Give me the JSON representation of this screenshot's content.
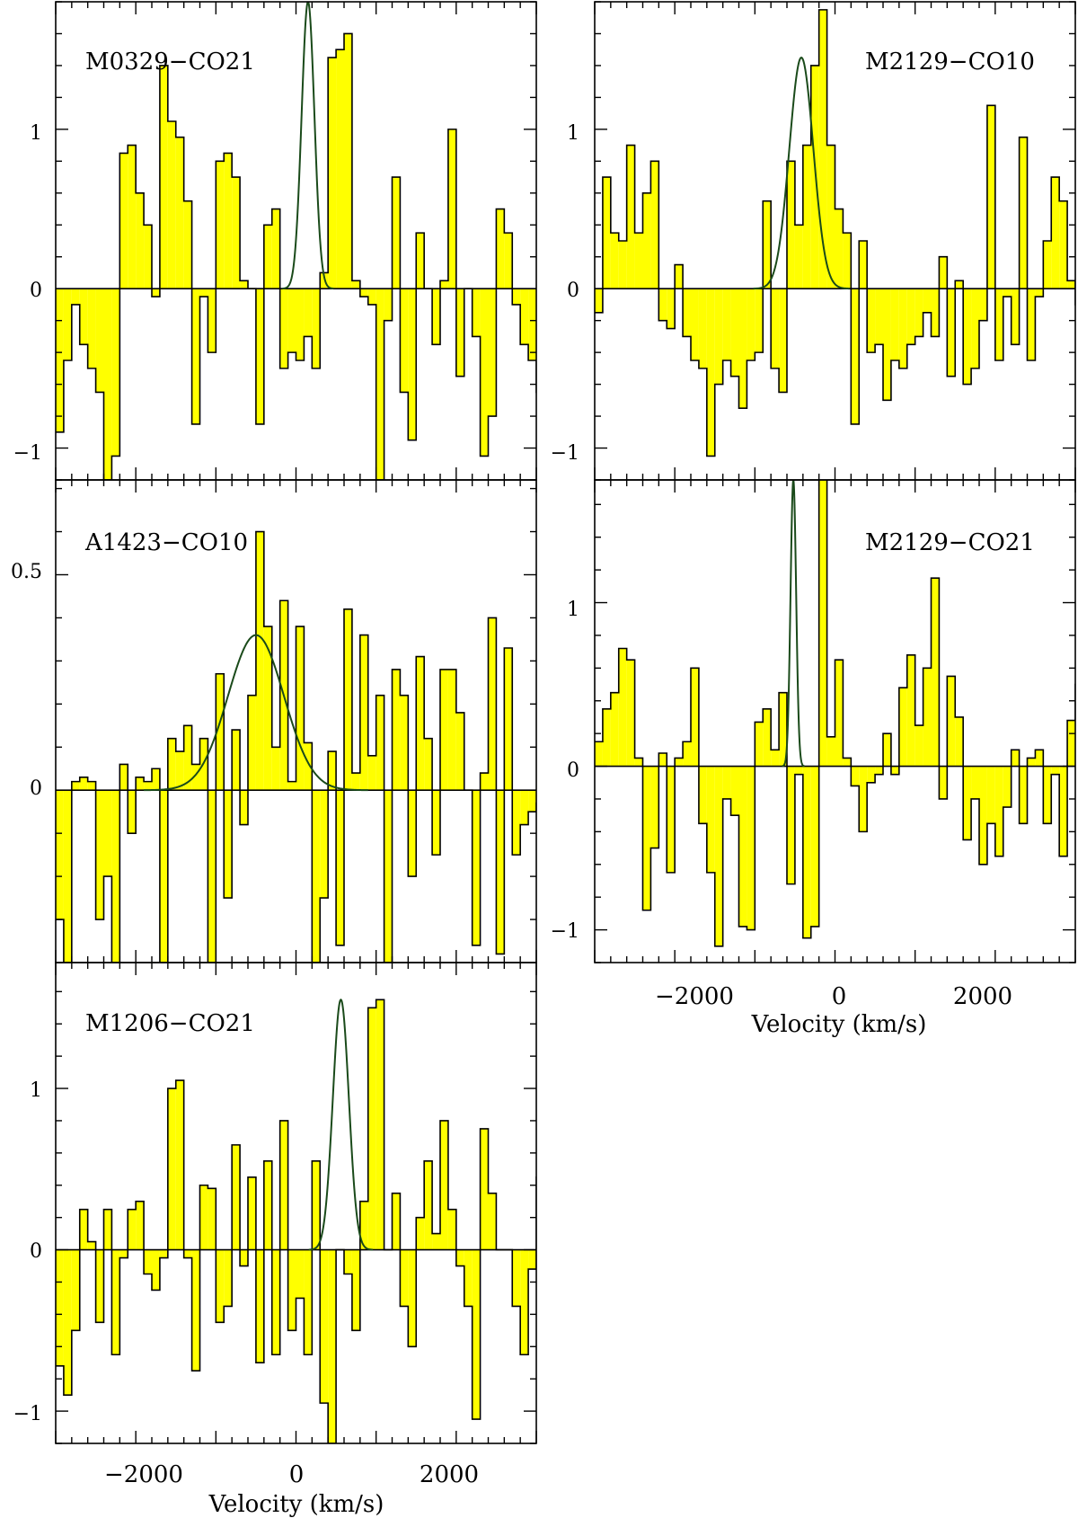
{
  "colors": {
    "fill": "#ffff00",
    "outline": "#000000",
    "fit": "#1a4a1a"
  },
  "x_axis": {
    "label": "Velocity (km/s)",
    "tick_labels": [
      "−2000",
      "0",
      "2000"
    ]
  },
  "chart_data": [
    {
      "type": "step-histogram",
      "panel_label": "M0329−CO21",
      "xlim": [
        -3000,
        3000
      ],
      "ylim": [
        -1.2,
        1.8
      ],
      "y_tick_labels": [
        "−1",
        "0",
        "1"
      ],
      "show_x_tick_labels": false,
      "bin_width": 100,
      "x_start": -3000,
      "values": [
        -0.9,
        -0.45,
        -0.1,
        -0.35,
        -0.5,
        -0.65,
        -1.2,
        -1.05,
        0.85,
        0.9,
        0.6,
        0.4,
        -0.05,
        1.4,
        1.05,
        0.95,
        0.55,
        -0.85,
        -0.05,
        -0.4,
        0.8,
        0.85,
        0.7,
        0.05,
        0.0,
        -0.85,
        0.4,
        0.5,
        -0.5,
        -0.4,
        -0.45,
        -0.3,
        -0.5,
        0.1,
        1.45,
        1.5,
        1.6,
        0.05,
        -0.05,
        -0.1,
        -1.25,
        -0.2,
        0.7,
        -0.65,
        -0.95,
        0.35,
        0.0,
        -0.35,
        0.05,
        1.0,
        -0.55,
        0.0,
        -0.3,
        -1.05,
        -0.8,
        0.5,
        0.35,
        -0.1,
        -0.35,
        -0.45,
        -0.65,
        0.85,
        0.9,
        0.8,
        0.2,
        -0.5,
        -0.45,
        -0.65,
        0.05,
        0.2
      ],
      "fit": {
        "amplitude": 1.8,
        "center": 150,
        "sigma": 80
      }
    },
    {
      "type": "step-histogram",
      "panel_label": "M2129−CO10",
      "xlim": [
        -3000,
        3000
      ],
      "ylim": [
        -1.2,
        1.8
      ],
      "y_tick_labels": [
        "−1",
        "0",
        "1"
      ],
      "show_x_tick_labels": false,
      "bin_width": 100,
      "x_start": -3000,
      "values": [
        -0.15,
        0.7,
        0.35,
        0.3,
        0.9,
        0.35,
        0.6,
        0.8,
        -0.2,
        -0.25,
        0.15,
        -0.3,
        -0.45,
        -0.5,
        -1.05,
        -0.6,
        -0.45,
        -0.55,
        -0.75,
        -0.45,
        -0.4,
        0.55,
        -0.5,
        -0.65,
        0.8,
        0.4,
        0.9,
        1.4,
        1.75,
        0.9,
        0.5,
        0.35,
        -0.85,
        0.3,
        -0.4,
        -0.35,
        -0.7,
        -0.45,
        -0.5,
        -0.35,
        -0.3,
        -0.15,
        -0.3,
        0.2,
        -0.55,
        0.05,
        -0.6,
        -0.5,
        -0.2,
        1.15,
        -0.45,
        -0.05,
        -0.35,
        0.95,
        -0.45,
        -0.05,
        0.3,
        0.7,
        0.55,
        0.05,
        -0.1,
        -0.7,
        0.6,
        0.1
      ],
      "fit": {
        "amplitude": 1.45,
        "center": -420,
        "sigma": 150
      }
    },
    {
      "type": "step-histogram",
      "panel_label": "A1423−CO10",
      "xlim": [
        -3000,
        3000
      ],
      "ylim": [
        -0.4,
        0.72
      ],
      "y_tick_labels": [
        "0",
        "0.5"
      ],
      "show_x_tick_labels": false,
      "bin_width": 100,
      "x_start": -3000,
      "values": [
        -0.3,
        -0.4,
        0.02,
        0.03,
        0.02,
        -0.3,
        -0.2,
        -0.4,
        0.06,
        -0.1,
        0.03,
        0.02,
        0.05,
        -0.4,
        0.12,
        0.09,
        0.15,
        0.06,
        0.12,
        -0.4,
        0.27,
        -0.25,
        0.14,
        -0.08,
        0.22,
        0.6,
        0.38,
        0.1,
        0.44,
        0.02,
        0.38,
        0.11,
        -0.4,
        -0.25,
        0.09,
        -0.36,
        0.42,
        0.04,
        0.36,
        0.08,
        0.22,
        -0.4,
        0.28,
        0.22,
        -0.2,
        0.31,
        0.12,
        -0.15,
        0.28,
        0.28,
        0.18,
        0.0,
        -0.36,
        0.04,
        0.4,
        -0.38,
        0.33,
        -0.15,
        -0.08,
        -0.05,
        -0.03
      ],
      "fit": {
        "amplitude": 0.36,
        "center": -500,
        "sigma": 350
      }
    },
    {
      "type": "step-histogram",
      "panel_label": "M2129−CO21",
      "xlim": [
        -3000,
        3000
      ],
      "ylim": [
        -1.2,
        1.75
      ],
      "y_tick_labels": [
        "−1",
        "0",
        "1"
      ],
      "show_x_tick_labels": true,
      "xlabel": "Velocity (km/s)",
      "bin_width": 100,
      "x_start": -3000,
      "values": [
        0.15,
        0.35,
        0.45,
        0.72,
        0.65,
        0.05,
        -0.88,
        -0.5,
        0.08,
        -0.65,
        0.05,
        0.15,
        0.6,
        -0.35,
        -0.65,
        -1.1,
        -0.2,
        -0.3,
        -0.98,
        -1.0,
        0.27,
        0.35,
        0.1,
        0.45,
        -0.72,
        -0.05,
        -1.05,
        -0.98,
        1.75,
        0.18,
        0.65,
        0.05,
        -0.12,
        -0.4,
        -0.1,
        -0.05,
        0.2,
        -0.05,
        0.48,
        0.68,
        0.25,
        0.6,
        1.15,
        -0.2,
        0.55,
        0.3,
        -0.45,
        -0.2,
        -0.6,
        -0.35,
        -0.55,
        -0.25,
        0.1,
        -0.35,
        0.05,
        0.1,
        -0.35,
        -0.05,
        -0.55,
        0.28,
        0.5,
        -0.1,
        0.2,
        0.45
      ],
      "fit": {
        "amplitude": 1.75,
        "center": -520,
        "sigma": 35
      }
    },
    {
      "type": "step-histogram",
      "panel_label": "M1206−CO21",
      "xlim": [
        -3000,
        3000
      ],
      "ylim": [
        -1.2,
        1.78
      ],
      "y_tick_labels": [
        "−1",
        "0",
        "1"
      ],
      "show_x_tick_labels": true,
      "xlabel": "Velocity (km/s)",
      "bin_width": 100,
      "x_start": -3000,
      "values": [
        -0.72,
        -0.9,
        -0.5,
        0.25,
        0.05,
        -0.45,
        0.25,
        -0.65,
        -0.05,
        0.25,
        0.3,
        -0.15,
        -0.25,
        -0.05,
        1.0,
        1.05,
        -0.05,
        -0.75,
        0.4,
        0.38,
        -0.45,
        -0.35,
        0.65,
        -0.1,
        0.45,
        -0.7,
        0.55,
        -0.65,
        0.8,
        -0.5,
        -0.3,
        -0.65,
        0.55,
        -0.95,
        -1.2,
        0.0,
        -0.15,
        -0.5,
        0.3,
        1.5,
        1.55,
        0.0,
        0.35,
        -0.35,
        -0.6,
        0.2,
        0.55,
        0.1,
        0.8,
        0.25,
        -0.1,
        -0.35,
        -1.05,
        0.75,
        0.35,
        0.0,
        0.0,
        -0.35,
        -0.65,
        -0.12,
        0.45,
        -1.15,
        0.05,
        -0.15,
        0.55,
        -0.55,
        -0.8,
        1.45,
        -0.42
      ],
      "fit": {
        "amplitude": 1.55,
        "center": 560,
        "sigma": 100
      }
    }
  ]
}
